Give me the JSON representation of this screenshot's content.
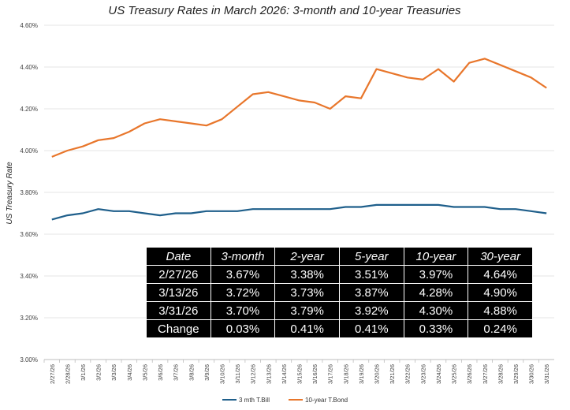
{
  "chart_data": {
    "type": "line",
    "title": "US Treasury Rates in March 2026: 3-month and 10-year Treasuries",
    "ylabel": "US Treasury Rate",
    "xlabel": "",
    "ylim": [
      3.0,
      4.6
    ],
    "yticks": [
      3.0,
      3.2,
      3.4,
      3.6,
      3.8,
      4.0,
      4.2,
      4.4,
      4.6
    ],
    "ytick_labels": [
      "3.00%",
      "3.20%",
      "3.40%",
      "3.60%",
      "3.80%",
      "4.00%",
      "4.20%",
      "4.40%",
      "4.60%"
    ],
    "grid": "horizontal",
    "legend_position": "bottom",
    "categories": [
      "2/27/26",
      "2/28/26",
      "3/1/26",
      "3/2/26",
      "3/3/26",
      "3/4/26",
      "3/5/26",
      "3/6/26",
      "3/7/26",
      "3/8/26",
      "3/9/26",
      "3/10/26",
      "3/11/26",
      "3/12/26",
      "3/13/26",
      "3/14/26",
      "3/15/26",
      "3/16/26",
      "3/17/26",
      "3/18/26",
      "3/19/26",
      "3/20/26",
      "3/21/26",
      "3/22/26",
      "3/23/26",
      "3/24/26",
      "3/25/26",
      "3/26/26",
      "3/27/26",
      "3/28/26",
      "3/29/26",
      "3/30/26",
      "3/31/26"
    ],
    "series": [
      {
        "name": "3 mth T.Bill",
        "color": "#1f5f8b",
        "values": [
          3.67,
          3.69,
          3.7,
          3.72,
          3.71,
          3.71,
          3.7,
          3.69,
          3.7,
          3.7,
          3.71,
          3.71,
          3.71,
          3.72,
          3.72,
          3.72,
          3.72,
          3.72,
          3.72,
          3.73,
          3.73,
          3.74,
          3.74,
          3.74,
          3.74,
          3.74,
          3.73,
          3.73,
          3.73,
          3.72,
          3.72,
          3.71,
          3.7
        ]
      },
      {
        "name": "10-year T.Bond",
        "color": "#e8762b",
        "values": [
          3.97,
          4.0,
          4.02,
          4.05,
          4.06,
          4.09,
          4.13,
          4.15,
          4.14,
          4.13,
          4.12,
          4.15,
          4.21,
          4.27,
          4.28,
          4.26,
          4.24,
          4.23,
          4.2,
          4.26,
          4.25,
          4.39,
          4.37,
          4.35,
          4.34,
          4.39,
          4.33,
          4.42,
          4.44,
          4.41,
          4.38,
          4.35,
          4.3
        ]
      }
    ]
  },
  "table": {
    "headers": [
      "Date",
      "3-month",
      "2-year",
      "5-year",
      "10-year",
      "30-year"
    ],
    "rows": [
      [
        "2/27/26",
        "3.67%",
        "3.38%",
        "3.51%",
        "3.97%",
        "4.64%"
      ],
      [
        "3/13/26",
        "3.72%",
        "3.73%",
        "3.87%",
        "4.28%",
        "4.90%"
      ],
      [
        "3/31/26",
        "3.70%",
        "3.79%",
        "3.92%",
        "4.30%",
        "4.88%"
      ],
      [
        "Change",
        "0.03%",
        "0.41%",
        "0.41%",
        "0.33%",
        "0.24%"
      ]
    ]
  }
}
